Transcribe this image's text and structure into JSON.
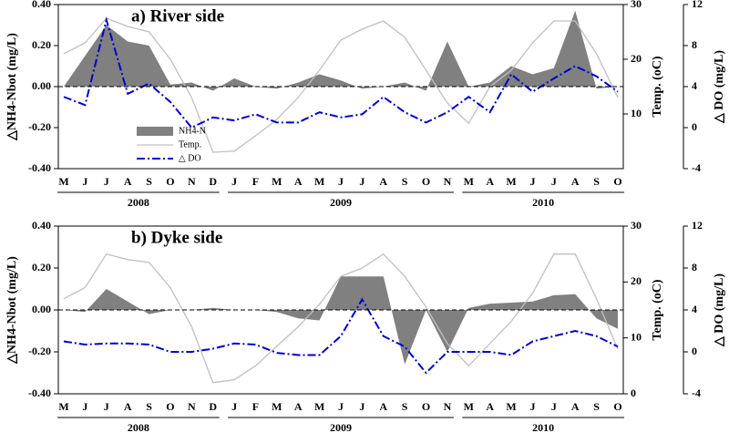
{
  "chart_data": [
    {
      "type": "line",
      "title": "a) River side",
      "categories": [
        "M",
        "J",
        "J",
        "A",
        "S",
        "O",
        "N",
        "D",
        "J",
        "F",
        "M",
        "A",
        "M",
        "J",
        "J",
        "A",
        "S",
        "O",
        "N",
        "M",
        "A",
        "M",
        "J",
        "J",
        "A",
        "S",
        "O"
      ],
      "years": [
        "2008",
        "2009",
        "2010"
      ],
      "year_spans": [
        8,
        11,
        8
      ],
      "y_label": "△NH4-Nbot (mg/L)",
      "y2_label": "Temp. (oC)",
      "y3_label": "△ DO (mg/L)",
      "ylim": [
        -0.4,
        0.4
      ],
      "yticks": [
        {
          "value": -0.4,
          "label": "-0.40"
        },
        {
          "value": -0.2,
          "label": "-0.20"
        },
        {
          "value": 0,
          "label": "0.00"
        },
        {
          "value": 0.2,
          "label": "0.20"
        },
        {
          "value": 0.4,
          "label": "0.40"
        }
      ],
      "y2lim": [
        0,
        30
      ],
      "y2ticks": [
        10,
        20,
        30
      ],
      "y3lim": [
        -4,
        12
      ],
      "y3ticks": [
        -4,
        0,
        4,
        8,
        12
      ],
      "legend": true,
      "series": [
        {
          "name": "NH4-N",
          "color": "#808080",
          "style": "area",
          "axis": "y",
          "values": [
            0.0,
            0.15,
            0.3,
            0.22,
            0.2,
            0.01,
            0.02,
            -0.02,
            0.04,
            0.0,
            -0.01,
            0.02,
            0.06,
            0.03,
            -0.01,
            0.0,
            0.02,
            -0.02,
            0.22,
            0.0,
            0.02,
            0.1,
            0.06,
            0.09,
            0.37,
            -0.01,
            0.0
          ]
        },
        {
          "name": "Temp.",
          "color": "#c0c0c0",
          "style": "line",
          "axis": "y2",
          "values": [
            21,
            23,
            27.5,
            26,
            25,
            20,
            13,
            3,
            3.2,
            6,
            9,
            13,
            18,
            23.5,
            25.5,
            27,
            24,
            18,
            12,
            8.3,
            15,
            18,
            23,
            27,
            27,
            21,
            13
          ]
        },
        {
          "name": "△ DO",
          "color": "#0000cc",
          "style": "dashdot",
          "axis": "y3",
          "values": [
            3,
            2.2,
            10.5,
            3.3,
            4.3,
            2.5,
            0,
            1,
            0.7,
            1.3,
            0.5,
            0.5,
            1.5,
            1,
            1.3,
            3,
            1.5,
            0.5,
            1.5,
            3,
            1.5,
            5.2,
            3.5,
            4.8,
            6,
            5,
            3.5
          ]
        }
      ]
    },
    {
      "type": "line",
      "title": "b) Dyke side",
      "categories": [
        "M",
        "J",
        "J",
        "A",
        "S",
        "O",
        "N",
        "D",
        "J",
        "F",
        "M",
        "A",
        "M",
        "J",
        "J",
        "A",
        "S",
        "O",
        "N",
        "M",
        "A",
        "M",
        "J",
        "J",
        "A",
        "S",
        "O"
      ],
      "years": [
        "2008",
        "2009",
        "2010"
      ],
      "year_spans": [
        8,
        11,
        8
      ],
      "y_label": "△NH4-Nbot (mg/L)",
      "y2_label": "Temp. (oC)",
      "y3_label": "△ DO (mg/L)",
      "ylim": [
        -0.4,
        0.4
      ],
      "yticks": [
        {
          "value": -0.4,
          "label": "-0.40"
        },
        {
          "value": -0.2,
          "label": "-0.20"
        },
        {
          "value": 0,
          "label": "0.00"
        },
        {
          "value": 0.2,
          "label": "0.20"
        },
        {
          "value": 0.4,
          "label": "0.40"
        }
      ],
      "y2lim": [
        0,
        30
      ],
      "y2ticks": [
        0,
        10,
        20,
        30
      ],
      "y3lim": [
        -4,
        12
      ],
      "y3ticks": [
        -4,
        0,
        4,
        8,
        12
      ],
      "legend": false,
      "series": [
        {
          "color": "#808080",
          "style": "area",
          "axis": "y",
          "values": [
            0.0,
            -0.01,
            0.1,
            0.04,
            -0.02,
            0.0,
            0.0,
            0.01,
            0.0,
            0.0,
            -0.01,
            -0.04,
            -0.05,
            0.16,
            0.16,
            0.16,
            -0.26,
            0.0,
            -0.2,
            0.01,
            0.03,
            0.035,
            0.04,
            0.07,
            0.075,
            -0.04,
            -0.09
          ]
        },
        {
          "color": "#c0c0c0",
          "style": "line",
          "axis": "y2",
          "values": [
            17,
            19,
            25,
            24,
            23.5,
            19,
            12,
            2,
            2.5,
            5,
            8.5,
            12,
            16,
            21,
            22.5,
            25,
            21,
            15.5,
            9,
            5,
            9,
            13,
            18,
            25,
            25,
            17,
            8
          ]
        },
        {
          "color": "#0000cc",
          "style": "dashdot",
          "axis": "y3",
          "values": [
            1,
            0.7,
            0.8,
            0.8,
            0.7,
            0,
            0,
            0.3,
            0.8,
            0.7,
            -0.1,
            -0.3,
            -0.3,
            1.5,
            5,
            1.5,
            0.5,
            -2,
            0,
            0,
            0,
            -0.3,
            1,
            1.5,
            2,
            1.5,
            0.5
          ]
        }
      ]
    }
  ]
}
